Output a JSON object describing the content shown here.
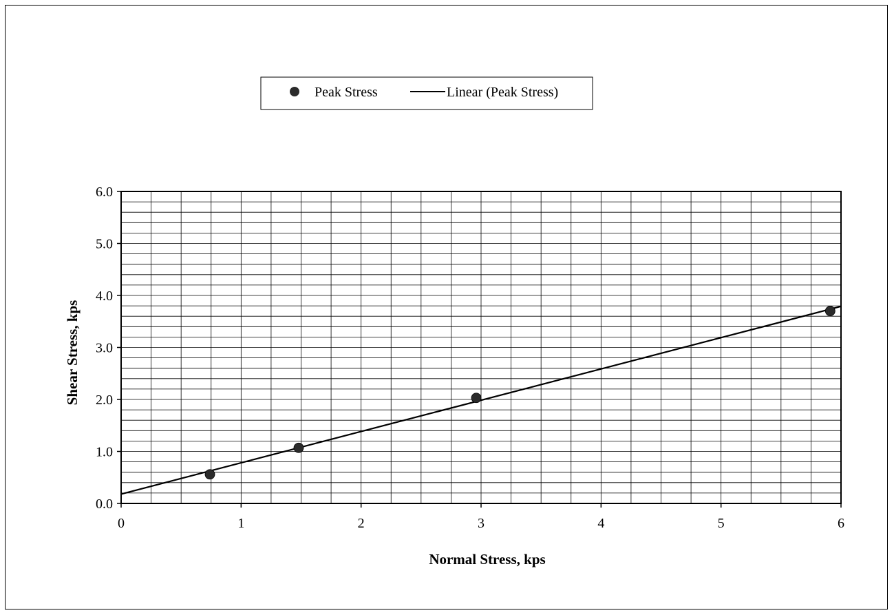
{
  "chart_data": {
    "type": "scatter",
    "title": "",
    "xlabel": "Normal Stress, kps",
    "ylabel": "Shear Stress, kps",
    "xlim": [
      0,
      6
    ],
    "ylim": [
      0,
      6
    ],
    "x_ticks": [
      "0",
      "1",
      "2",
      "3",
      "4",
      "5",
      "6"
    ],
    "y_ticks": [
      "0.0",
      "1.0",
      "2.0",
      "3.0",
      "4.0",
      "5.0",
      "6.0"
    ],
    "grid": true,
    "x_minor_step": 0.25,
    "y_minor_step": 0.2,
    "legend": {
      "placement": "top-center",
      "entries": [
        "Peak Stress",
        "Linear (Peak Stress)"
      ]
    },
    "series": [
      {
        "name": "Peak Stress",
        "kind": "points",
        "points": [
          {
            "x": 0.74,
            "y": 0.56
          },
          {
            "x": 1.48,
            "y": 1.07
          },
          {
            "x": 2.96,
            "y": 2.03
          },
          {
            "x": 5.91,
            "y": 3.7
          }
        ]
      },
      {
        "name": "Linear (Peak Stress)",
        "kind": "trendline",
        "line": [
          {
            "x": 0,
            "y": 0.18
          },
          {
            "x": 6,
            "y": 3.79
          }
        ]
      }
    ],
    "colors": {
      "marker": "#2b2b2b",
      "line": "#000000",
      "grid": "#000000"
    }
  }
}
